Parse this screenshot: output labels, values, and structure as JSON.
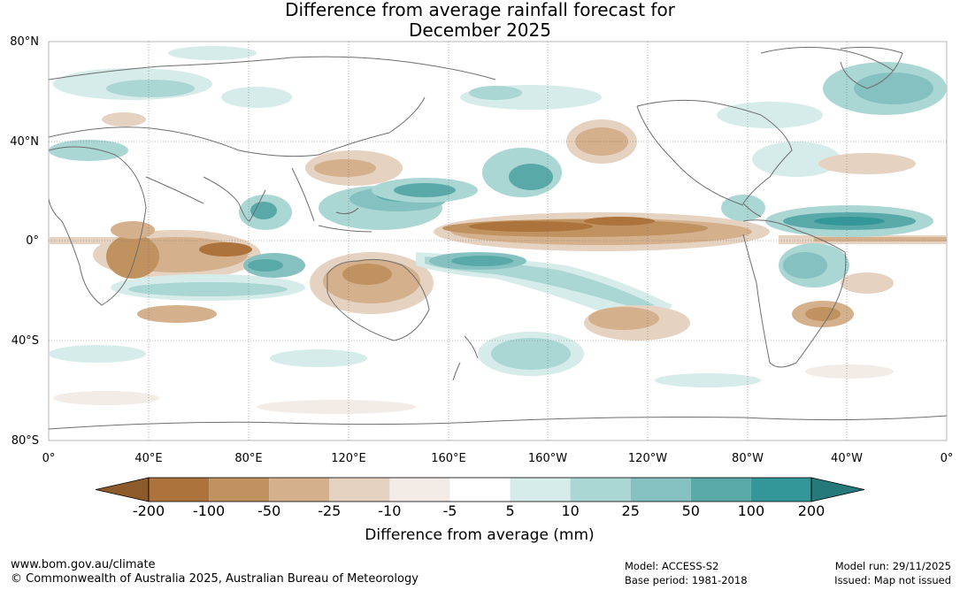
{
  "title": {
    "line1": "Difference from average rainfall forecast for",
    "line2": "December 2025"
  },
  "map": {
    "lat_labels": [
      "80°N",
      "40°N",
      "0°",
      "40°S",
      "80°S"
    ],
    "lon_labels": [
      "0°",
      "40°E",
      "80°E",
      "120°E",
      "160°E",
      "160°W",
      "120°W",
      "80°W",
      "40°W",
      "0°"
    ],
    "grid": true,
    "coastline_color": "#6e6e6e"
  },
  "colorbar": {
    "title": "Difference from average (mm)",
    "tick_labels": [
      "-200",
      "-100",
      "-50",
      "-25",
      "-10",
      "-5",
      "5",
      "10",
      "25",
      "50",
      "100",
      "200"
    ],
    "colors": [
      "#8c5a2b",
      "#ad733c",
      "#c0925f",
      "#d4b08c",
      "#e6d2c1",
      "#f2ebe6",
      "#ffffff",
      "#d6ecea",
      "#aad6d4",
      "#84c1c0",
      "#5aa9a9",
      "#33979a",
      "#26797a"
    ]
  },
  "footer": {
    "url": "www.bom.gov.au/climate",
    "copyright": "© Commonwealth of Australia 2025, Australian Bureau of Meteorology",
    "model": "Model: ACCESS-S2",
    "base_period": "Base period: 1981-2018",
    "model_run": "Model run: 29/11/2025",
    "issued": "Issued: Map not issued"
  }
}
